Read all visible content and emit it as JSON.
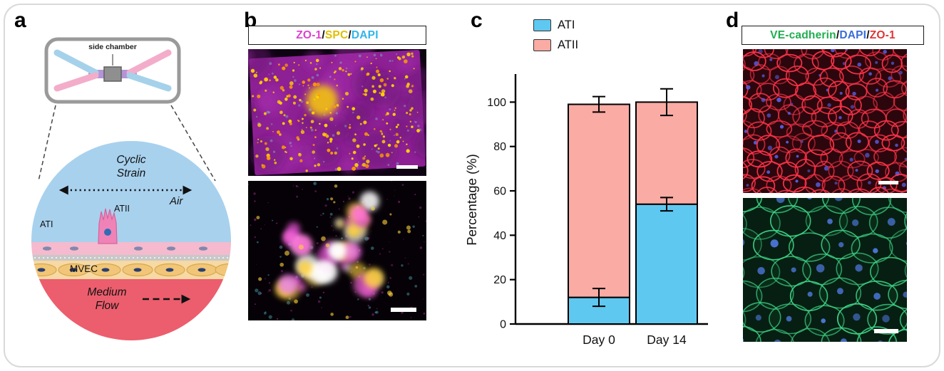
{
  "panels": {
    "a": {
      "letter": "a",
      "chip": {
        "label": "side chamber"
      },
      "diagram": {
        "labels": {
          "cyclic_strain": "Cyclic Strain",
          "air": "Air",
          "ati": "ATI",
          "atii": "ATII",
          "mvec": "MVEC",
          "medium_flow": "Medium Flow"
        },
        "colors": {
          "air_region": "#a8d1ee",
          "epithelium_band": "#f5bacd",
          "atii_cell": "#ef83b8",
          "membrane": "#c8c8c8",
          "mvec_band": "#f6d9a3",
          "mvec_cell": "#f2c678",
          "medium_region": "#ec5e6d",
          "channel_blue": "#a5d2ea",
          "channel_pink": "#f3adca",
          "channel_center": "#b493d6",
          "chip_outline": "#9a9a9a"
        }
      }
    },
    "b": {
      "letter": "b",
      "stain_label_parts": [
        {
          "text": "ZO-1",
          "color": "#e03fd0"
        },
        {
          "text": "/",
          "color": "#111111"
        },
        {
          "text": "SPC",
          "color": "#dfc000"
        },
        {
          "text": "/",
          "color": "#111111"
        },
        {
          "text": "DAPI",
          "color": "#30b6e8"
        }
      ]
    },
    "c": {
      "letter": "c"
    },
    "d": {
      "letter": "d",
      "stain_label_parts": [
        {
          "text": "VE-cadherin",
          "color": "#1fae4e"
        },
        {
          "text": "/",
          "color": "#111111"
        },
        {
          "text": "DAPI",
          "color": "#3a6cd8"
        },
        {
          "text": "/",
          "color": "#111111"
        },
        {
          "text": "ZO-1",
          "color": "#e03535"
        }
      ]
    }
  },
  "chart_data": {
    "type": "bar",
    "stacked": true,
    "categories": [
      "Day 0",
      "Day 14"
    ],
    "series": [
      {
        "name": "ATI",
        "color": "#5fc8f0",
        "values": [
          12,
          54
        ],
        "errors": [
          4,
          3
        ]
      },
      {
        "name": "ATII",
        "color": "#f9aba4",
        "values": [
          87,
          46
        ],
        "errors": [
          3.5,
          6
        ]
      }
    ],
    "ylabel": "Percentage (%)",
    "yticks": [
      0,
      20,
      40,
      60,
      80,
      100
    ],
    "ylim": [
      0,
      112
    ],
    "bar_outline_color": "#000000",
    "error_bar_color": "#000000",
    "legend_position": "top",
    "notes": "error bars drawn at cumulative segment tops"
  }
}
